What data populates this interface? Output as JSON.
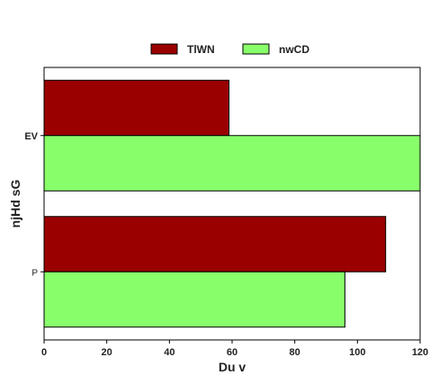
{
  "chart_data": {
    "type": "bar",
    "orientation": "horizontal",
    "title": "",
    "xlabel": "Du v",
    "ylabel": "njHd sG",
    "xlim": [
      0,
      120
    ],
    "x_ticks": [
      0,
      20,
      40,
      60,
      80,
      100,
      120
    ],
    "categories": [
      "EV",
      "P"
    ],
    "series": [
      {
        "name": "TlWN",
        "color": "#9b0000",
        "values": [
          59,
          109
        ]
      },
      {
        "name": "nwCD",
        "color": "#88ff6a",
        "values": [
          121,
          96
        ]
      }
    ],
    "legend": "top-center",
    "grid": false
  }
}
